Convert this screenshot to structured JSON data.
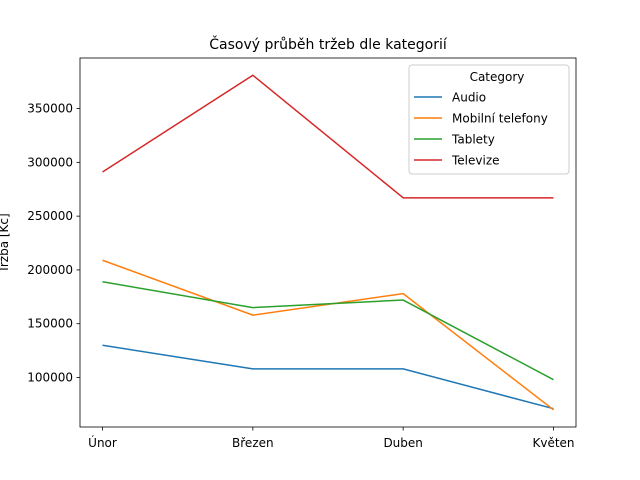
{
  "chart_data": {
    "type": "line",
    "title": "Časový průběh tržeb dle kategorií",
    "xlabel": "",
    "ylabel": "Tržba [Kč]",
    "categories": [
      "Únor",
      "Březen",
      "Duben",
      "Květen"
    ],
    "ylim": [
      54000,
      397000
    ],
    "yticks": [
      100000,
      150000,
      200000,
      250000,
      300000,
      350000
    ],
    "grid": false,
    "legend": {
      "title": "Category",
      "placement": "top-right"
    },
    "series": [
      {
        "name": "Audio",
        "color": "#1f77b4",
        "values": [
          130000,
          108000,
          108000,
          71000
        ]
      },
      {
        "name": "Mobilní telefony",
        "color": "#ff7f0e",
        "values": [
          209000,
          158000,
          178000,
          70000
        ]
      },
      {
        "name": "Tablety",
        "color": "#2ca02c",
        "values": [
          189000,
          165000,
          172000,
          98000
        ]
      },
      {
        "name": "Televize",
        "color": "#d62728",
        "values": [
          291000,
          381000,
          267000,
          267000
        ]
      }
    ]
  }
}
